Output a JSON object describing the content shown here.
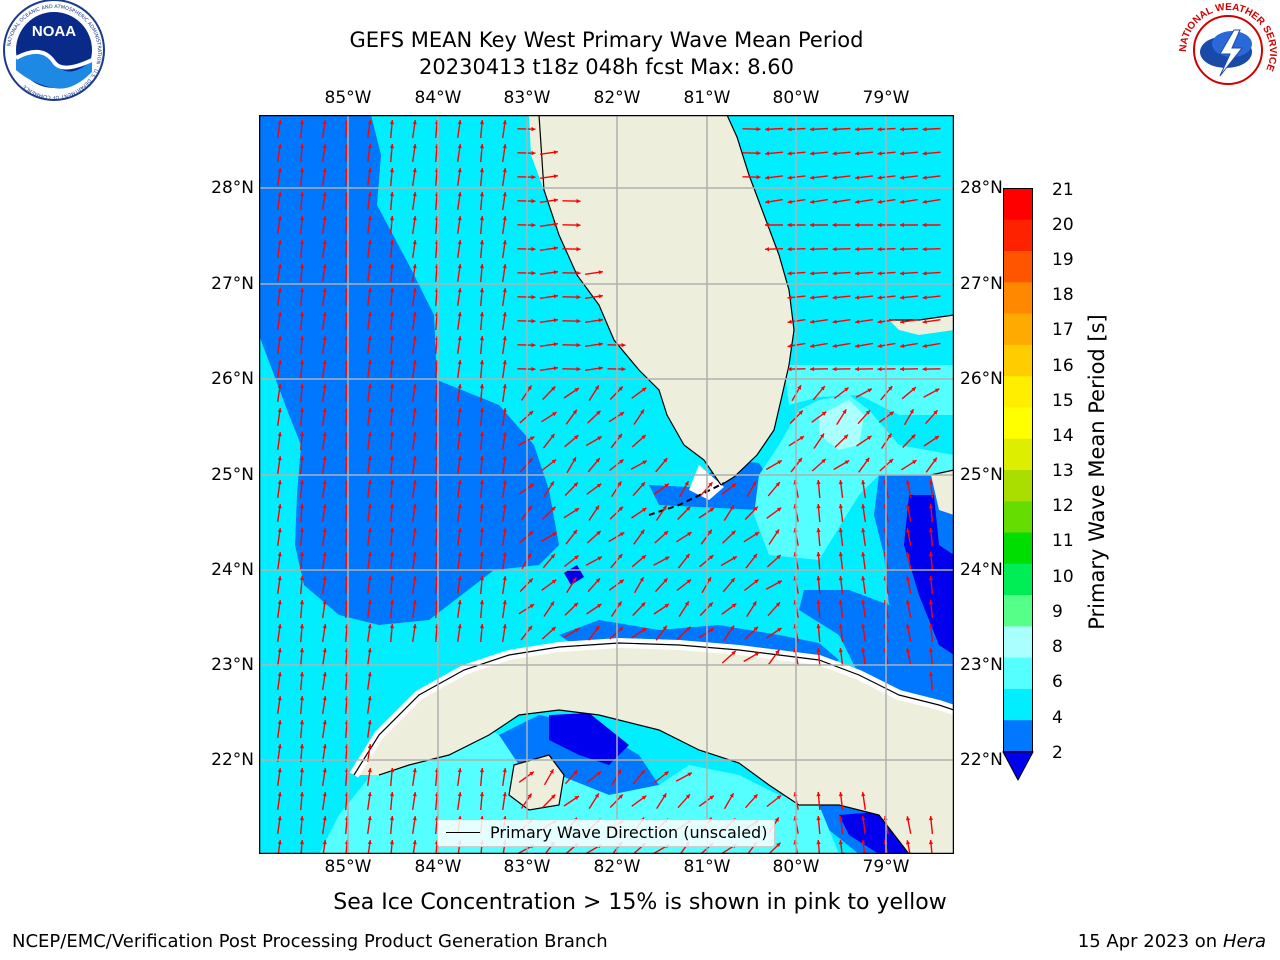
{
  "title": {
    "line1": "GEFS MEAN Key West Primary Wave Mean Period",
    "line2": "20230413 t18z 048h fcst   Max: 8.60"
  },
  "logos": {
    "noaa_text": "NOAA",
    "noaa_ring": "NATIONAL OCEANIC AND ATMOSPHERIC ADMINISTRATION · U.S. DEPARTMENT OF COMMERCE",
    "nws_ring": "NATIONAL WEATHER SERVICE"
  },
  "map": {
    "lon_labels": [
      "85°W",
      "84°W",
      "83°W",
      "82°W",
      "81°W",
      "80°W",
      "79°W"
    ],
    "lat_labels": [
      "28°N",
      "27°N",
      "26°N",
      "25°N",
      "24°N",
      "23°N",
      "22°N"
    ],
    "legend_label": "Primary Wave Direction (unscaled)",
    "colors": {
      "land": "#eeeedd",
      "arrow": "#ff0000",
      "grid": "#b0b0b0",
      "period_2_4": "#0077ff",
      "period_4_6": "#00eeff",
      "period_6_8": "#55ffff",
      "period_8_9": "#aaffff",
      "below_2": "#0000ee"
    }
  },
  "colorbar": {
    "label": "Primary Wave Mean Period [s]",
    "ticks": [
      "21",
      "20",
      "19",
      "18",
      "17",
      "16",
      "15",
      "14",
      "13",
      "12",
      "11",
      "10",
      "9",
      "8",
      "6",
      "4",
      "2"
    ],
    "colors_top_to_bottom": [
      "#ff0000",
      "#ff2200",
      "#ff5500",
      "#ff8800",
      "#ffaa00",
      "#ffcc00",
      "#ffee00",
      "#ffff00",
      "#ddee00",
      "#aadd00",
      "#66dd00",
      "#00dd00",
      "#00ee55",
      "#55ff88",
      "#aaffff",
      "#55ffff",
      "#00eeff",
      "#0077ff"
    ],
    "extend_color": "#0000ee"
  },
  "note": "Sea Ice Concentration > 15% is shown in pink to yellow",
  "footer": {
    "left": "NCEP/EMC/Verification Post Processing Product Generation Branch",
    "right_prefix": "15 Apr 2023 on ",
    "right_host": "Hera"
  }
}
